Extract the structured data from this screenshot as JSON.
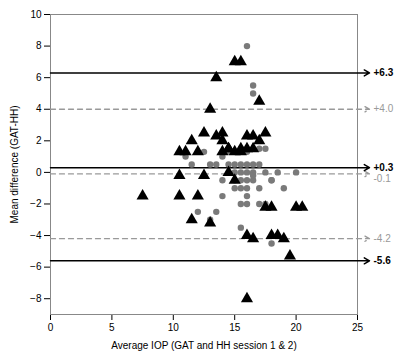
{
  "chart_data": {
    "type": "scatter",
    "xlabel": "Average IOP (GAT and HH session 1 & 2)",
    "ylabel": "Mean difference (GAT-HH)",
    "xlim": [
      0,
      25
    ],
    "ylim": [
      -9,
      10
    ],
    "xticks": [
      0,
      5,
      10,
      15,
      20,
      25
    ],
    "yticks": [
      -8,
      -6,
      -4,
      -2,
      0,
      2,
      4,
      6,
      8,
      10
    ],
    "series": [
      {
        "marker": "triangle",
        "color": "#000000",
        "x": [
          7.5,
          10.5,
          10.5,
          11.0,
          11.5,
          12.0,
          12.0,
          12.5,
          13.0,
          13.5,
          13.5,
          14.0,
          14.0,
          14.0,
          14.5,
          14.5,
          14.5,
          15.0,
          15.0,
          15.0,
          15.5,
          15.5,
          15.5,
          16.0,
          16.0,
          16.0,
          16.5,
          16.5,
          16.5,
          17.0,
          17.0,
          17.5,
          17.5,
          18.0,
          18.0,
          18.5,
          19.0,
          19.5,
          20.0,
          20.5,
          16.0,
          12.5,
          11.5,
          13.0,
          10.5
        ],
        "values": [
          -1.5,
          -1.5,
          1.3,
          1.3,
          -3.0,
          1.3,
          -1.5,
          2.5,
          4.0,
          6.0,
          2.3,
          2.0,
          2.5,
          1.3,
          1.5,
          1.5,
          0.0,
          7.0,
          1.3,
          -0.5,
          7.0,
          1.5,
          1.3,
          2.3,
          1.5,
          -4.0,
          1.5,
          -4.2,
          2.3,
          4.5,
          2.0,
          2.5,
          -2.2,
          -2.2,
          -4.0,
          -4.0,
          -4.2,
          -5.3,
          -2.2,
          -2.2,
          -8.0,
          -0.2,
          2.0,
          -3.2,
          -0.2
        ]
      },
      {
        "marker": "circle",
        "color": "#7a7a7a",
        "x": [
          11.0,
          11.5,
          12.0,
          12.5,
          13.0,
          13.0,
          13.5,
          13.5,
          14.0,
          14.0,
          14.5,
          14.5,
          14.5,
          14.5,
          15.0,
          15.0,
          15.0,
          15.0,
          15.0,
          15.5,
          15.5,
          15.5,
          15.5,
          15.5,
          15.5,
          16.0,
          16.0,
          16.0,
          16.0,
          16.0,
          16.0,
          16.0,
          16.5,
          16.5,
          16.5,
          16.5,
          16.5,
          17.0,
          17.0,
          17.0,
          17.0,
          17.5,
          17.5,
          17.5,
          18.0,
          18.0,
          18.0,
          18.5,
          19.0,
          20.0,
          16.0,
          16.5,
          15.5,
          14.0
        ],
        "values": [
          1.0,
          0.5,
          -2.5,
          1.3,
          -3.0,
          0.5,
          -2.5,
          0.5,
          1.0,
          -0.5,
          1.5,
          1.3,
          1.5,
          0.5,
          0.5,
          0.0,
          -0.5,
          -1.0,
          1.3,
          0.5,
          1.5,
          0.0,
          -0.5,
          -1.0,
          -2.0,
          1.3,
          0.5,
          0.0,
          -0.5,
          -1.0,
          -1.5,
          -2.0,
          5.5,
          5.0,
          0.5,
          0.0,
          -0.5,
          1.5,
          0.5,
          -1.0,
          -2.0,
          1.5,
          0.0,
          -2.0,
          -0.5,
          -0.5,
          -4.5,
          0.0,
          -1.0,
          0.0,
          8.0,
          -0.2,
          -3.5,
          -1.5
        ]
      }
    ],
    "lines": [
      {
        "value": 6.3,
        "label": "+6.3",
        "color": "#000000",
        "line_style": "solid"
      },
      {
        "value": 0.3,
        "label": "+0.3",
        "color": "#000000",
        "line_style": "solid"
      },
      {
        "value": -5.6,
        "label": "-5.6",
        "color": "#000000",
        "line_style": "solid"
      },
      {
        "value": 4.0,
        "label": "+4.0",
        "color": "#999999",
        "line_style": "dashed"
      },
      {
        "value": -0.1,
        "label": "-0.1",
        "color": "#999999",
        "line_style": "dashed"
      },
      {
        "value": -4.2,
        "label": "-4.2",
        "color": "#999999",
        "line_style": "dashed"
      }
    ]
  }
}
